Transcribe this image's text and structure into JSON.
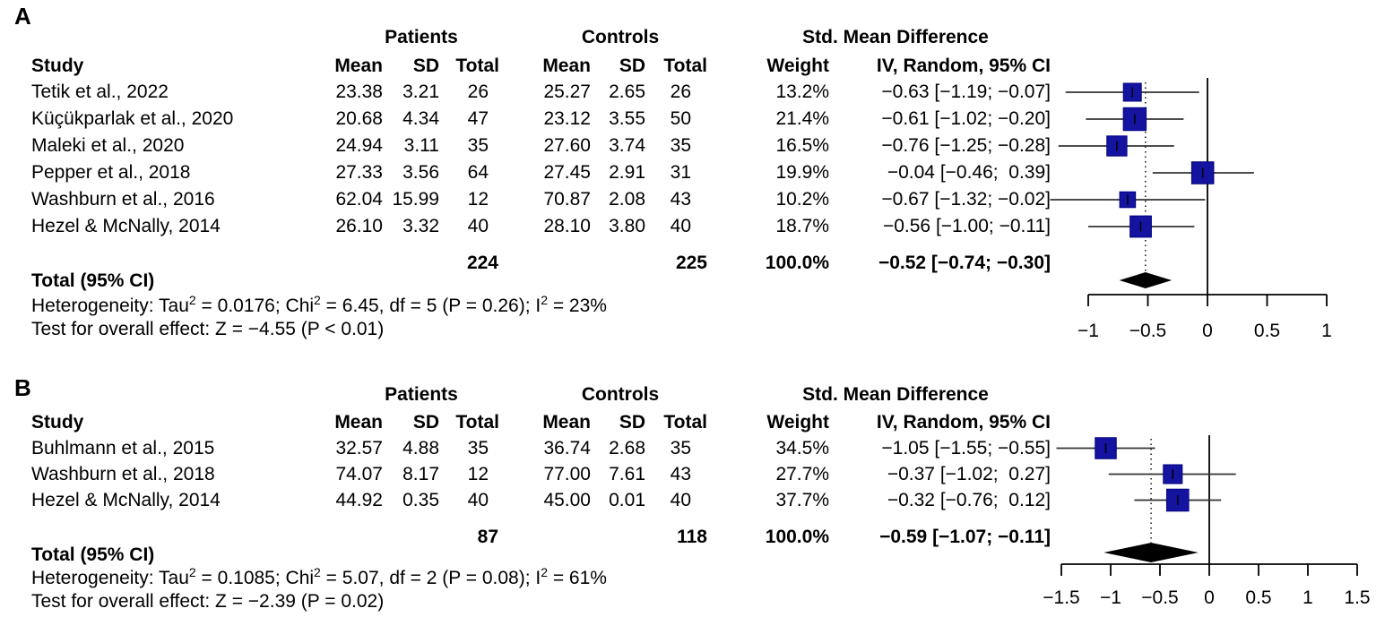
{
  "chart_data": [
    {
      "type": "scatter",
      "subtype": "forest_plot",
      "panel_label": "A",
      "effect_measure_header": "Std. Mean Difference",
      "group_headers": {
        "patients": "Patients",
        "controls": "Controls"
      },
      "column_headers": {
        "study": "Study",
        "mean": "Mean",
        "sd": "SD",
        "total": "Total",
        "weight": "Weight",
        "effect": "IV, Random, 95% CI"
      },
      "studies": [
        {
          "study": "Tetik et al., 2022",
          "patients_mean": "23.38",
          "patients_sd": "3.21",
          "patients_total": "26",
          "controls_mean": "25.27",
          "controls_sd": "2.65",
          "controls_total": "26",
          "weight_label": "13.2%",
          "weight_pct": 13.2,
          "effect_label": "−0.63 [−1.19; −0.07]",
          "estimate": -0.63,
          "ci_lower": -1.19,
          "ci_upper": -0.07
        },
        {
          "study": "Küçükparlak et al., 2020",
          "patients_mean": "20.68",
          "patients_sd": "4.34",
          "patients_total": "47",
          "controls_mean": "23.12",
          "controls_sd": "3.55",
          "controls_total": "50",
          "weight_label": "21.4%",
          "weight_pct": 21.4,
          "effect_label": "−0.61 [−1.02; −0.20]",
          "estimate": -0.61,
          "ci_lower": -1.02,
          "ci_upper": -0.2
        },
        {
          "study": "Maleki et al., 2020",
          "patients_mean": "24.94",
          "patients_sd": "3.11",
          "patients_total": "35",
          "controls_mean": "27.60",
          "controls_sd": "3.74",
          "controls_total": "35",
          "weight_label": "16.5%",
          "weight_pct": 16.5,
          "effect_label": "−0.76 [−1.25; −0.28]",
          "estimate": -0.76,
          "ci_lower": -1.25,
          "ci_upper": -0.28
        },
        {
          "study": "Pepper et al., 2018",
          "patients_mean": "27.33",
          "patients_sd": "3.56",
          "patients_total": "64",
          "controls_mean": "27.45",
          "controls_sd": "2.91",
          "controls_total": "31",
          "weight_label": "19.9%",
          "weight_pct": 19.9,
          "effect_label": "−0.04 [−0.46;  0.39]",
          "estimate": -0.04,
          "ci_lower": -0.46,
          "ci_upper": 0.39
        },
        {
          "study": "Washburn et al., 2016",
          "patients_mean": "62.04",
          "patients_sd": "15.99",
          "patients_total": "12",
          "controls_mean": "70.87",
          "controls_sd": "2.08",
          "controls_total": "43",
          "weight_label": "10.2%",
          "weight_pct": 10.2,
          "effect_label": "−0.67 [−1.32; −0.02]",
          "estimate": -0.67,
          "ci_lower": -1.32,
          "ci_upper": -0.02
        },
        {
          "study": "Hezel & McNally, 2014",
          "patients_mean": "26.10",
          "patients_sd": "3.32",
          "patients_total": "40",
          "controls_mean": "28.10",
          "controls_sd": "3.80",
          "controls_total": "40",
          "weight_label": "18.7%",
          "weight_pct": 18.7,
          "effect_label": "−0.56 [−1.00; −0.11]",
          "estimate": -0.56,
          "ci_lower": -1.0,
          "ci_upper": -0.11
        }
      ],
      "total_row": {
        "label": "Total (95% CI)",
        "patients_total": "224",
        "controls_total": "225",
        "weight_label": "100.0%",
        "effect_label": "−0.52 [−0.74; −0.30]",
        "estimate": -0.52,
        "ci_lower": -0.74,
        "ci_upper": -0.3
      },
      "heterogeneity_line": "Heterogeneity: Tau^2 = 0.0176; Chi^2 = 6.45, df = 5 (P = 0.26); I^2 = 23%",
      "overall_test_line": "Test for overall effect: Z = −4.55 (P < 0.01)",
      "axis": {
        "min": -1,
        "max": 1,
        "tick_values": [
          -1,
          -0.5,
          0,
          0.5,
          1
        ],
        "tick_labels": [
          "−1",
          "−0.5",
          "0",
          "0.5",
          "1"
        ],
        "zero_reference": 0,
        "dotted_reference": -0.52
      },
      "colors": {
        "square": "#1414A0",
        "square_border": "#000080",
        "diamond": "#000000",
        "ci_line": "#333333",
        "axis": "#000000"
      }
    },
    {
      "type": "scatter",
      "subtype": "forest_plot",
      "panel_label": "B",
      "effect_measure_header": "Std. Mean Difference",
      "group_headers": {
        "patients": "Patients",
        "controls": "Controls"
      },
      "column_headers": {
        "study": "Study",
        "mean": "Mean",
        "sd": "SD",
        "total": "Total",
        "weight": "Weight",
        "effect": "IV, Random, 95% CI"
      },
      "studies": [
        {
          "study": "Buhlmann et al., 2015",
          "patients_mean": "32.57",
          "patients_sd": "4.88",
          "patients_total": "35",
          "controls_mean": "36.74",
          "controls_sd": "2.68",
          "controls_total": "35",
          "weight_label": "34.5%",
          "weight_pct": 34.5,
          "effect_label": "−1.05 [−1.55; −0.55]",
          "estimate": -1.05,
          "ci_lower": -1.55,
          "ci_upper": -0.55
        },
        {
          "study": "Washburn et al., 2018",
          "patients_mean": "74.07",
          "patients_sd": "8.17",
          "patients_total": "12",
          "controls_mean": "77.00",
          "controls_sd": "7.61",
          "controls_total": "43",
          "weight_label": "27.7%",
          "weight_pct": 27.7,
          "effect_label": "−0.37 [−1.02;  0.27]",
          "estimate": -0.37,
          "ci_lower": -1.02,
          "ci_upper": 0.27
        },
        {
          "study": "Hezel & McNally, 2014",
          "patients_mean": "44.92",
          "patients_sd": "0.35",
          "patients_total": "40",
          "controls_mean": "45.00",
          "controls_sd": "0.01",
          "controls_total": "40",
          "weight_label": "37.7%",
          "weight_pct": 37.7,
          "effect_label": "−0.32 [−0.76;  0.12]",
          "estimate": -0.32,
          "ci_lower": -0.76,
          "ci_upper": 0.12
        }
      ],
      "total_row": {
        "label": "Total (95% CI)",
        "patients_total": "87",
        "controls_total": "118",
        "weight_label": "100.0%",
        "effect_label": "−0.59 [−1.07; −0.11]",
        "estimate": -0.59,
        "ci_lower": -1.07,
        "ci_upper": -0.11
      },
      "heterogeneity_line": "Heterogeneity: Tau^2 = 0.1085; Chi^2 = 5.07, df = 2 (P = 0.08); I^2 = 61%",
      "overall_test_line": "Test for overall effect: Z = −2.39 (P = 0.02)",
      "axis": {
        "min": -1.5,
        "max": 1.5,
        "tick_values": [
          -1.5,
          -1,
          -0.5,
          0,
          0.5,
          1,
          1.5
        ],
        "tick_labels": [
          "−1.5",
          "−1",
          "−0.5",
          "0",
          "0.5",
          "1",
          "1.5"
        ],
        "zero_reference": 0,
        "dotted_reference": -0.59
      },
      "colors": {
        "square": "#1414A0",
        "square_border": "#000080",
        "diamond": "#000000",
        "ci_line": "#333333",
        "axis": "#000000"
      }
    }
  ]
}
